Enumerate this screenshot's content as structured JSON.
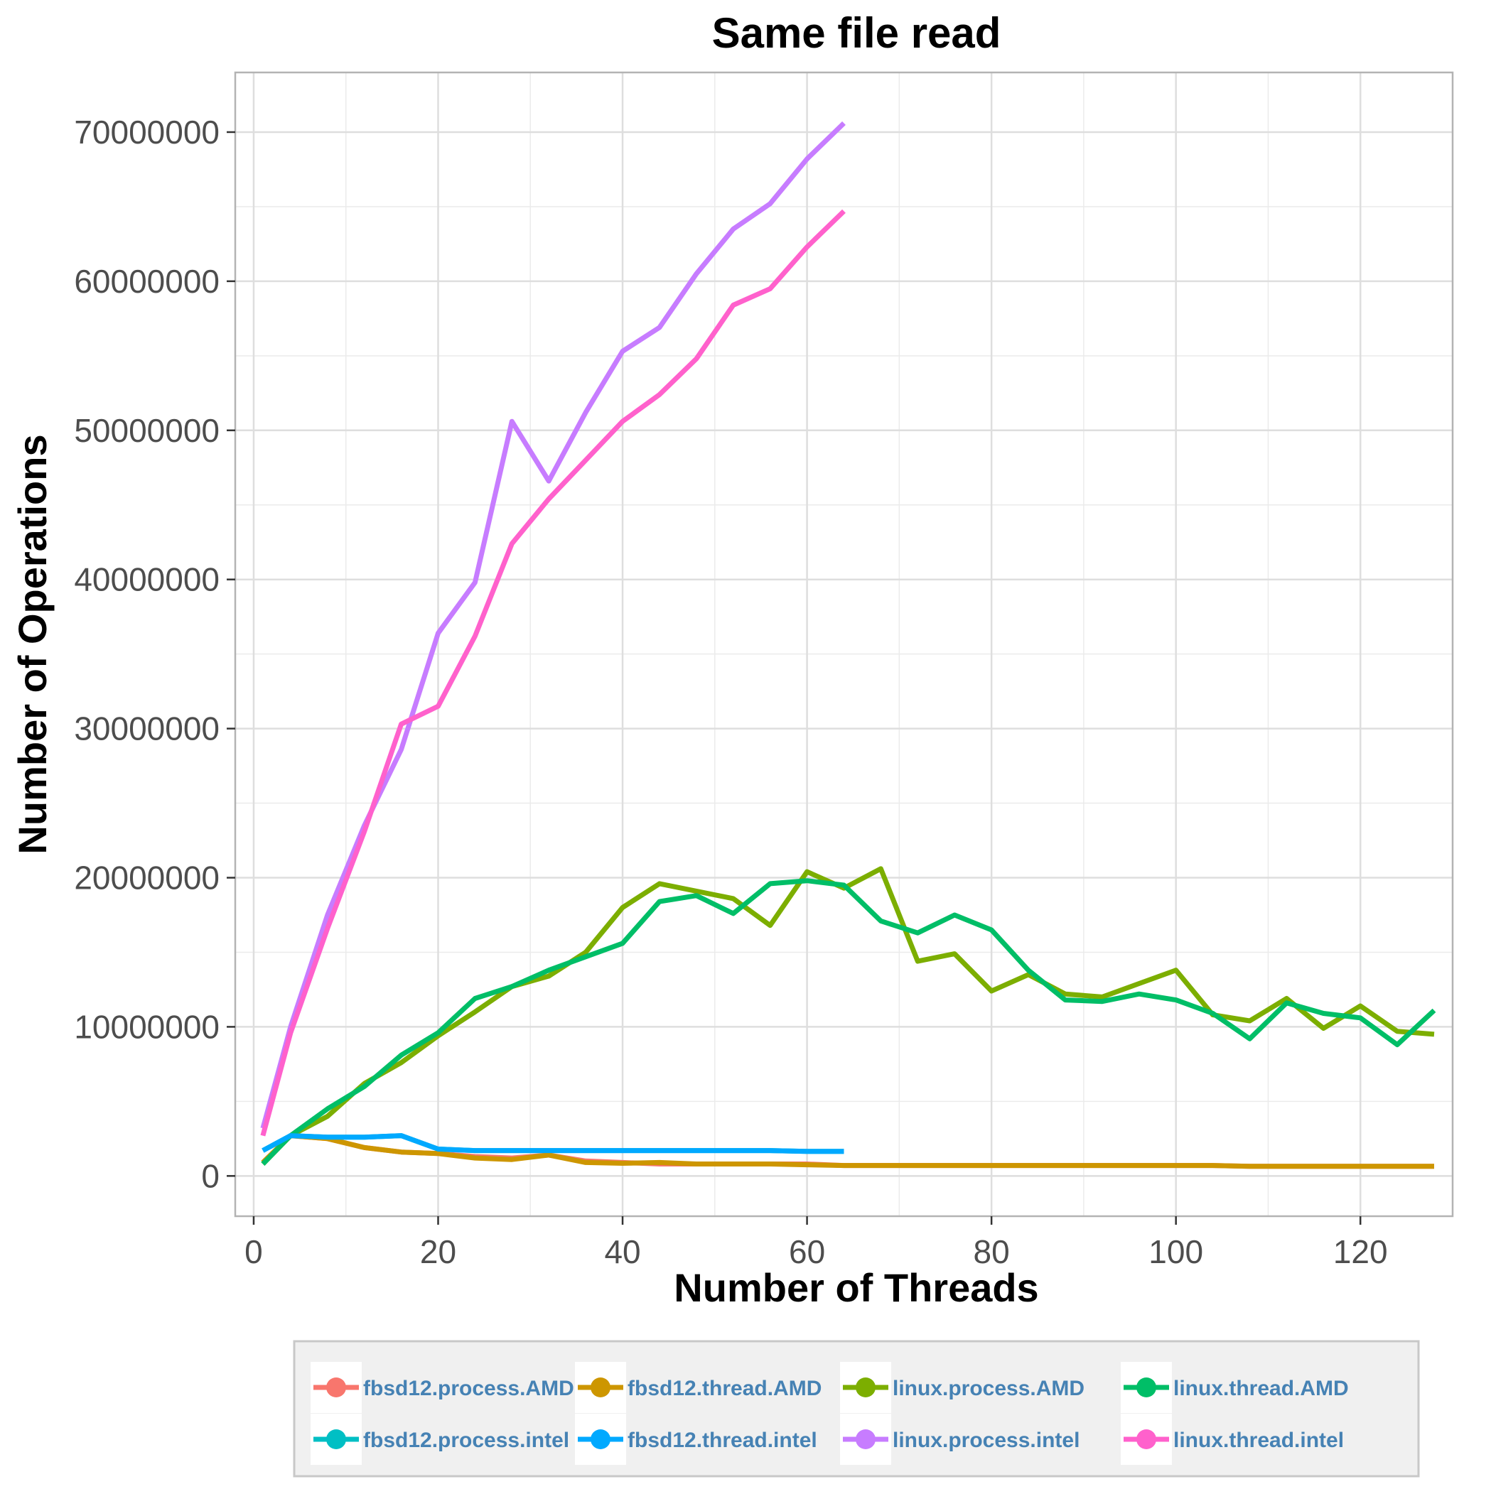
{
  "chart_data": {
    "type": "line",
    "title": "Same file read",
    "xlabel": "Number of Threads",
    "ylabel": "Number of Operations",
    "xlim": [
      -2,
      130
    ],
    "ylim": [
      -2700000,
      74000000
    ],
    "x_ticks": [
      0,
      20,
      40,
      60,
      80,
      100,
      120
    ],
    "y_ticks": [
      0,
      10000000,
      20000000,
      30000000,
      40000000,
      50000000,
      60000000,
      70000000
    ],
    "y_tick_labels": [
      "0",
      "10000000",
      "20000000",
      "30000000",
      "40000000",
      "50000000",
      "60000000",
      "70000000"
    ],
    "grid": true,
    "legend_position": "bottom",
    "series": [
      {
        "name": "fbsd12.process.AMD",
        "color": "#F8766D",
        "x": [
          1,
          4,
          8,
          12,
          16,
          20,
          24,
          28,
          32,
          36,
          40,
          44,
          48,
          52,
          56,
          60,
          64,
          68,
          72,
          76,
          80,
          84,
          88,
          92,
          96,
          100,
          104,
          108,
          112,
          116,
          120,
          124,
          128
        ],
        "y": [
          900000,
          2700000,
          2500000,
          1900000,
          1600000,
          1500000,
          1300000,
          1200000,
          1400000,
          1000000,
          900000,
          800000,
          800000,
          800000,
          800000,
          800000,
          700000,
          700000,
          700000,
          700000,
          700000,
          700000,
          700000,
          700000,
          700000,
          700000,
          700000,
          650000,
          650000,
          650000,
          650000,
          650000,
          650000
        ]
      },
      {
        "name": "linux.process.AMD",
        "color": "#7CAE00",
        "x": [
          1,
          4,
          8,
          12,
          16,
          20,
          24,
          28,
          32,
          36,
          40,
          44,
          48,
          52,
          56,
          60,
          64,
          68,
          72,
          76,
          80,
          84,
          88,
          92,
          96,
          100,
          104,
          108,
          112,
          116,
          120,
          124,
          128
        ],
        "y": [
          800000,
          2700000,
          4000000,
          6200000,
          7600000,
          9400000,
          11000000,
          12700000,
          13400000,
          15000000,
          18000000,
          19600000,
          19100000,
          18600000,
          16800000,
          20400000,
          19300000,
          20600000,
          14400000,
          14900000,
          12400000,
          13500000,
          12200000,
          12000000,
          12900000,
          13800000,
          10800000,
          10400000,
          11900000,
          9900000,
          11400000,
          9700000,
          9500000
        ]
      },
      {
        "name": "fbsd12.process.intel",
        "color": "#00BFC4",
        "x": [
          1,
          4,
          8,
          12,
          16,
          20,
          24,
          28,
          32,
          36,
          40,
          44,
          48,
          52,
          56,
          60,
          64
        ],
        "y": [
          1700000,
          2700000,
          2600000,
          2600000,
          2700000,
          1800000,
          1700000,
          1700000,
          1700000,
          1700000,
          1700000,
          1700000,
          1700000,
          1700000,
          1700000,
          1650000,
          1650000
        ]
      },
      {
        "name": "linux.process.intel",
        "color": "#C77CFF",
        "x": [
          1,
          4,
          8,
          12,
          16,
          20,
          24,
          28,
          32,
          36,
          40,
          44,
          48,
          52,
          56,
          60,
          64
        ],
        "y": [
          3200000,
          10000000,
          17500000,
          23500000,
          28600000,
          36400000,
          39800000,
          50600000,
          46600000,
          51200000,
          55300000,
          56900000,
          60500000,
          63500000,
          65200000,
          68200000,
          70600000
        ]
      },
      {
        "name": "fbsd12.thread.AMD",
        "color": "#CD9600",
        "x": [
          1,
          4,
          8,
          12,
          16,
          20,
          24,
          28,
          32,
          36,
          40,
          44,
          48,
          52,
          56,
          60,
          64,
          68,
          72,
          76,
          80,
          84,
          88,
          92,
          96,
          100,
          104,
          108,
          112,
          116,
          120,
          124,
          128
        ],
        "y": [
          900000,
          2700000,
          2500000,
          1900000,
          1600000,
          1500000,
          1200000,
          1100000,
          1400000,
          900000,
          850000,
          900000,
          800000,
          800000,
          800000,
          750000,
          700000,
          700000,
          700000,
          700000,
          700000,
          700000,
          700000,
          700000,
          700000,
          700000,
          700000,
          650000,
          650000,
          650000,
          650000,
          650000,
          650000
        ]
      },
      {
        "name": "linux.thread.AMD",
        "color": "#00BE67",
        "x": [
          1,
          4,
          8,
          12,
          16,
          20,
          24,
          28,
          32,
          36,
          40,
          44,
          48,
          52,
          56,
          60,
          64,
          68,
          72,
          76,
          80,
          84,
          88,
          92,
          96,
          100,
          104,
          108,
          112,
          116,
          120,
          124,
          128
        ],
        "y": [
          800000,
          2700000,
          4500000,
          6000000,
          8100000,
          9600000,
          11900000,
          12700000,
          13800000,
          14700000,
          15600000,
          18400000,
          18800000,
          17600000,
          19600000,
          19800000,
          19500000,
          17100000,
          16300000,
          17500000,
          16500000,
          13800000,
          11800000,
          11700000,
          12200000,
          11800000,
          10900000,
          9200000,
          11600000,
          10900000,
          10600000,
          8800000,
          11100000
        ]
      },
      {
        "name": "fbsd12.thread.intel",
        "color": "#00A9FF",
        "x": [
          1,
          4,
          8,
          12,
          16,
          20,
          24,
          28,
          32,
          36,
          40,
          44,
          48,
          52,
          56,
          60,
          64
        ],
        "y": [
          1700000,
          2700000,
          2600000,
          2600000,
          2700000,
          1800000,
          1700000,
          1700000,
          1700000,
          1700000,
          1700000,
          1700000,
          1700000,
          1700000,
          1700000,
          1650000,
          1650000
        ]
      },
      {
        "name": "linux.thread.intel",
        "color": "#FF61CC",
        "x": [
          1,
          4,
          8,
          12,
          16,
          20,
          24,
          28,
          32,
          36,
          40,
          44,
          48,
          52,
          56,
          60,
          64
        ],
        "y": [
          2700000,
          9600000,
          16600000,
          23100000,
          30300000,
          31500000,
          36200000,
          42400000,
          45400000,
          48000000,
          50600000,
          52400000,
          54800000,
          58400000,
          59500000,
          62300000,
          64700000
        ]
      }
    ]
  }
}
